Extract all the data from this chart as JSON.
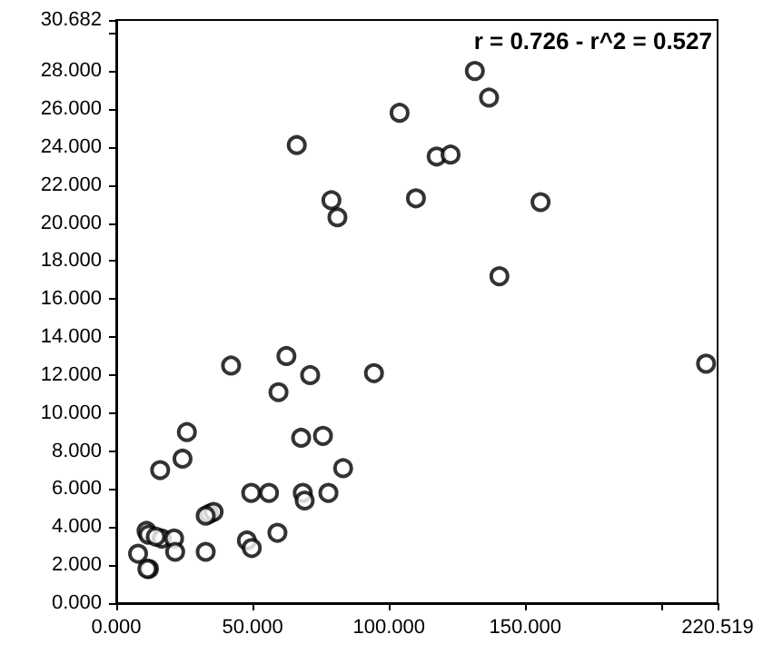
{
  "chart_data": {
    "type": "scatter",
    "annotations": [
      "r = 0.726 - r^2 = 0.527"
    ],
    "x": [
      66.2,
      78.9,
      81.1,
      131.5,
      136.7,
      103.9,
      117.5,
      122.6,
      109.9,
      155.6,
      140.5,
      42.1,
      62.4,
      71.1,
      59.5,
      94.5,
      25.9,
      24.3,
      16.1,
      67.8,
      75.8,
      83.2,
      49.5,
      56.0,
      68.4,
      69.1,
      77.8,
      34.1,
      35.7,
      32.8,
      59.1,
      47.9,
      49.7,
      32.8,
      11.1,
      11.8,
      16.7,
      21.2,
      21.6,
      8.0,
      12.0,
      11.4,
      14.5,
      216.3
    ],
    "series": [
      {
        "color": "#000000",
        "values": [
          24.1,
          21.2,
          20.3,
          28.0,
          26.6,
          25.8,
          23.5,
          23.6,
          21.3,
          21.1,
          17.2,
          12.5,
          13.0,
          12.0,
          11.1,
          12.1,
          9.0,
          7.6,
          7.0,
          8.7,
          8.8,
          7.1,
          5.8,
          5.8,
          5.8,
          5.4,
          5.8,
          4.7,
          4.8,
          4.6,
          3.7,
          3.3,
          2.9,
          2.7,
          3.8,
          3.6,
          3.4,
          3.4,
          2.7,
          2.6,
          1.8,
          1.8,
          3.5,
          12.6
        ]
      }
    ],
    "xlim": [
      0,
      220.519
    ],
    "xticks": [
      {
        "value": 0,
        "label": "0.000"
      },
      {
        "value": 50,
        "label": "50.000"
      },
      {
        "value": 100,
        "label": "100.000"
      },
      {
        "value": 150,
        "label": "150.000"
      },
      {
        "value": 200,
        "label": null
      },
      {
        "value": 220.519,
        "label": "220.519"
      }
    ],
    "ylim": [
      0,
      30.682
    ],
    "yticks": [
      {
        "value": 0,
        "label": "0.000"
      },
      {
        "value": 2,
        "label": "2.000"
      },
      {
        "value": 4,
        "label": "4.000"
      },
      {
        "value": 6,
        "label": "6.000"
      },
      {
        "value": 8,
        "label": "8.000"
      },
      {
        "value": 10,
        "label": "10.000"
      },
      {
        "value": 12,
        "label": "12.000"
      },
      {
        "value": 14,
        "label": "14.000"
      },
      {
        "value": 16,
        "label": "16.000"
      },
      {
        "value": 18,
        "label": "18.000"
      },
      {
        "value": 20,
        "label": "20.000"
      },
      {
        "value": 22,
        "label": "22.000"
      },
      {
        "value": 24,
        "label": "24.000"
      },
      {
        "value": 26,
        "label": "26.000"
      },
      {
        "value": 28,
        "label": "28.000"
      },
      {
        "value": 30,
        "label": null
      },
      {
        "value": 30.682,
        "label": "30.682"
      }
    ],
    "grid": false,
    "marker": "circle"
  }
}
